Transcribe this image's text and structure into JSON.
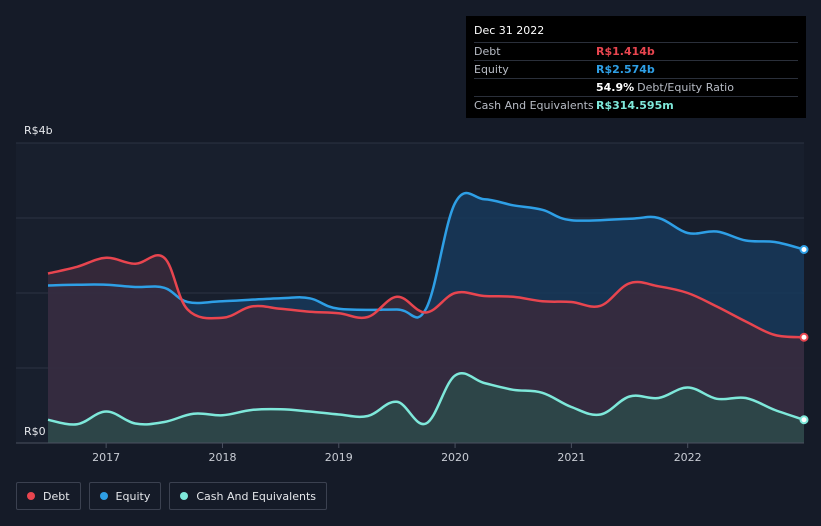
{
  "tooltip": {
    "date": "Dec 31 2022",
    "rows": [
      {
        "label": "Debt",
        "value": "R$1.414b",
        "color": "#e8454f"
      },
      {
        "label": "Equity",
        "value": "R$2.574b",
        "color": "#2e9fe6"
      },
      {
        "label": "",
        "value": "54.9%",
        "suffix": "Debt/Equity Ratio",
        "color": "#ffffff"
      },
      {
        "label": "Cash And Equivalents",
        "value": "R$314.595m",
        "color": "#7ee8da"
      }
    ]
  },
  "legend": [
    {
      "label": "Debt",
      "color": "#e8454f"
    },
    {
      "label": "Equity",
      "color": "#2e9fe6"
    },
    {
      "label": "Cash And Equivalents",
      "color": "#7ee8da"
    }
  ],
  "chart_data": {
    "type": "area",
    "ylim": [
      0,
      4
    ],
    "y_unit": "R$ billions",
    "y_ticks": [
      {
        "value": 4,
        "label": "R$4b"
      },
      {
        "value": 0,
        "label": "R$0"
      }
    ],
    "x_range": [
      2016.5,
      2023.0
    ],
    "x_ticks": [
      {
        "value": 2017,
        "label": "2017"
      },
      {
        "value": 2018,
        "label": "2018"
      },
      {
        "value": 2019,
        "label": "2019"
      },
      {
        "value": 2020,
        "label": "2020"
      },
      {
        "value": 2021,
        "label": "2021"
      },
      {
        "value": 2022,
        "label": "2022"
      }
    ],
    "highlight_x": 2022.75,
    "series": [
      {
        "name": "Equity",
        "color": "#2e9fe6",
        "fill": "#17385a",
        "points": [
          [
            2016.5,
            2.1
          ],
          [
            2016.75,
            2.11
          ],
          [
            2017.0,
            2.11
          ],
          [
            2017.25,
            2.08
          ],
          [
            2017.5,
            2.07
          ],
          [
            2017.7,
            1.88
          ],
          [
            2018.0,
            1.89
          ],
          [
            2018.5,
            1.93
          ],
          [
            2018.75,
            1.93
          ],
          [
            2019.0,
            1.79
          ],
          [
            2019.5,
            1.78
          ],
          [
            2019.75,
            1.79
          ],
          [
            2020.0,
            3.2
          ],
          [
            2020.25,
            3.25
          ],
          [
            2020.5,
            3.17
          ],
          [
            2020.75,
            3.11
          ],
          [
            2021.0,
            2.97
          ],
          [
            2021.5,
            2.99
          ],
          [
            2021.75,
            3.0
          ],
          [
            2022.0,
            2.8
          ],
          [
            2022.25,
            2.82
          ],
          [
            2022.5,
            2.7
          ],
          [
            2022.75,
            2.68
          ],
          [
            2023.0,
            2.58
          ]
        ]
      },
      {
        "name": "Debt",
        "color": "#e8454f",
        "fill": "#3a2a3c",
        "points": [
          [
            2016.5,
            2.26
          ],
          [
            2016.75,
            2.35
          ],
          [
            2017.0,
            2.47
          ],
          [
            2017.25,
            2.39
          ],
          [
            2017.5,
            2.47
          ],
          [
            2017.7,
            1.78
          ],
          [
            2018.0,
            1.67
          ],
          [
            2018.25,
            1.82
          ],
          [
            2018.5,
            1.79
          ],
          [
            2018.75,
            1.75
          ],
          [
            2019.0,
            1.73
          ],
          [
            2019.25,
            1.68
          ],
          [
            2019.5,
            1.95
          ],
          [
            2019.75,
            1.74
          ],
          [
            2020.0,
            2.0
          ],
          [
            2020.25,
            1.96
          ],
          [
            2020.5,
            1.95
          ],
          [
            2020.75,
            1.89
          ],
          [
            2021.0,
            1.88
          ],
          [
            2021.25,
            1.83
          ],
          [
            2021.5,
            2.13
          ],
          [
            2021.75,
            2.09
          ],
          [
            2022.0,
            2.0
          ],
          [
            2022.25,
            1.82
          ],
          [
            2022.5,
            1.62
          ],
          [
            2022.75,
            1.44
          ],
          [
            2023.0,
            1.41
          ]
        ]
      },
      {
        "name": "Cash And Equivalents",
        "color": "#7ee8da",
        "fill": "#2d4a4a",
        "points": [
          [
            2016.5,
            0.31
          ],
          [
            2016.75,
            0.25
          ],
          [
            2017.0,
            0.42
          ],
          [
            2017.25,
            0.26
          ],
          [
            2017.5,
            0.28
          ],
          [
            2017.75,
            0.39
          ],
          [
            2018.0,
            0.37
          ],
          [
            2018.25,
            0.44
          ],
          [
            2018.5,
            0.45
          ],
          [
            2018.75,
            0.42
          ],
          [
            2019.0,
            0.38
          ],
          [
            2019.25,
            0.36
          ],
          [
            2019.5,
            0.55
          ],
          [
            2019.75,
            0.26
          ],
          [
            2020.0,
            0.9
          ],
          [
            2020.25,
            0.8
          ],
          [
            2020.5,
            0.71
          ],
          [
            2020.75,
            0.67
          ],
          [
            2021.0,
            0.48
          ],
          [
            2021.25,
            0.38
          ],
          [
            2021.5,
            0.62
          ],
          [
            2021.75,
            0.6
          ],
          [
            2022.0,
            0.74
          ],
          [
            2022.25,
            0.59
          ],
          [
            2022.5,
            0.6
          ],
          [
            2022.75,
            0.44
          ],
          [
            2023.0,
            0.31
          ]
        ]
      }
    ]
  }
}
